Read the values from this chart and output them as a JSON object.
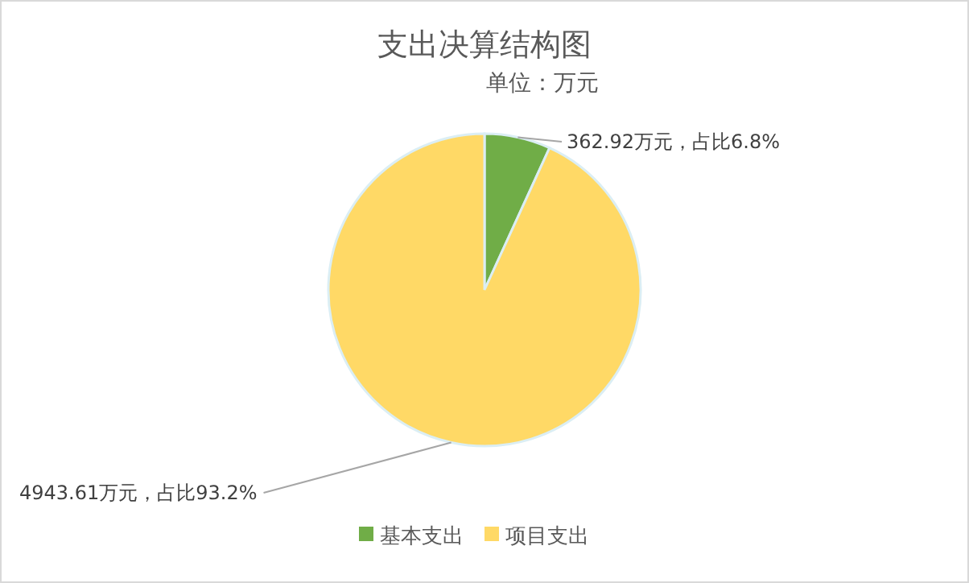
{
  "chart_data": {
    "type": "pie",
    "title": "支出决算结构图",
    "subtitle": "单位：万元",
    "categories": [
      "基本支出",
      "项目支出"
    ],
    "values": [
      362.92,
      4943.61
    ],
    "colors": [
      "#70ad47",
      "#ffd966"
    ],
    "value_labels": [
      "362.92万元，占比6.8%",
      "4943.61万元，占比93.2%"
    ],
    "legend": "bottom"
  }
}
